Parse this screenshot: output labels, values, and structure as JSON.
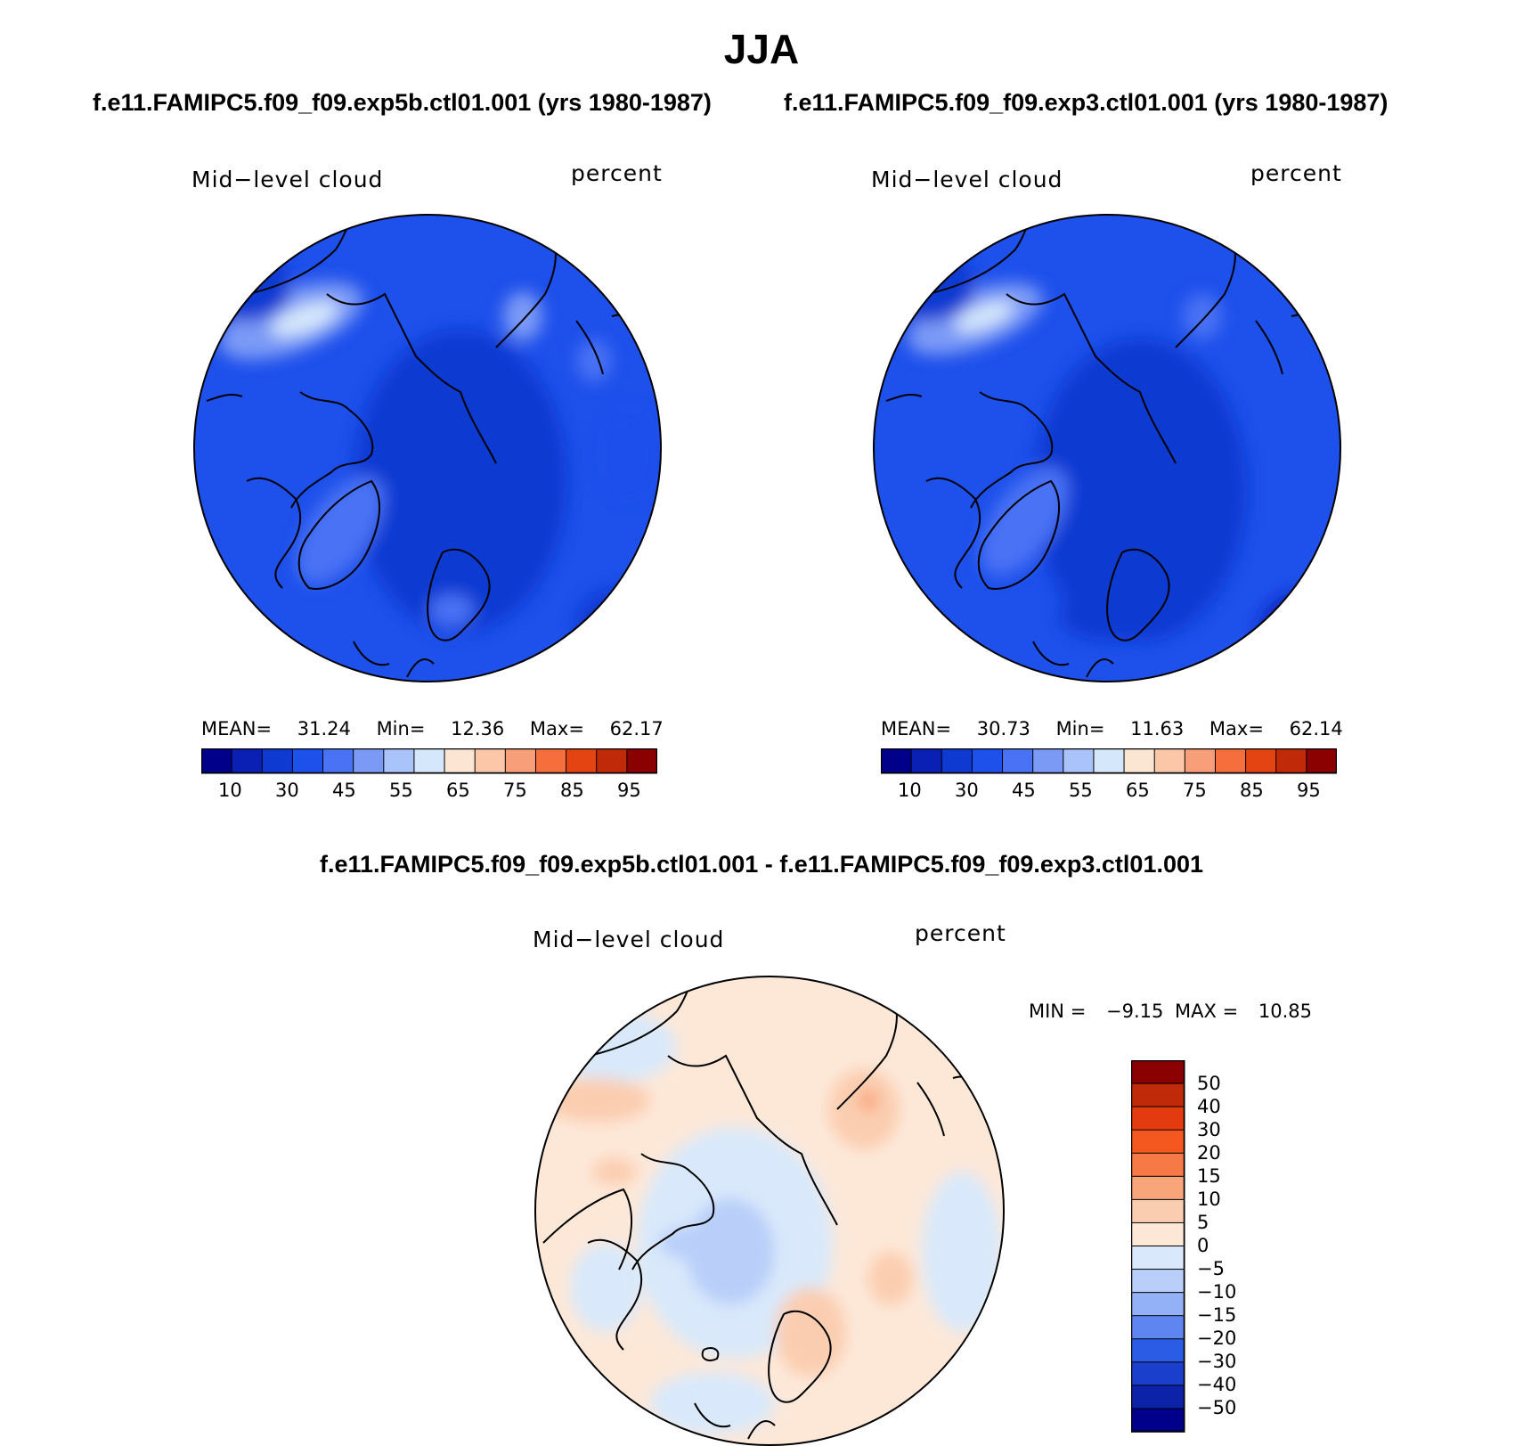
{
  "title": "JJA",
  "top_left": {
    "case_label": "f.e11.FAMIPC5.f09_f09.exp5b.ctl01.001 (yrs 1980-1987)",
    "variable": "Mid−level cloud",
    "units": "percent",
    "mean_label": "MEAN=",
    "mean": "31.24",
    "min_label": "Min=",
    "min": "12.36",
    "max_label": "Max=",
    "max": "62.17"
  },
  "top_right": {
    "case_label": "f.e11.FAMIPC5.f09_f09.exp3.ctl01.001 (yrs 1980-1987)",
    "variable": "Mid−level cloud",
    "units": "percent",
    "mean_label": "MEAN=",
    "mean": "30.73",
    "min_label": "Min=",
    "min": "11.63",
    "max_label": "Max=",
    "max": "62.14"
  },
  "abs_colorbar": {
    "colors": [
      "#00008b",
      "#0a1fb4",
      "#0f3ad2",
      "#1e50eb",
      "#4a72f4",
      "#7b9af6",
      "#a9c3fb",
      "#d5e8fb",
      "#fbe6d4",
      "#fbc7a8",
      "#f89e78",
      "#f56e3b",
      "#e44312",
      "#c02a08",
      "#8b0000"
    ],
    "tick_labels": [
      "10",
      "30",
      "45",
      "55",
      "65",
      "75",
      "85",
      "95"
    ]
  },
  "difference": {
    "title": "f.e11.FAMIPC5.f09_f09.exp5b.ctl01.001 - f.e11.FAMIPC5.f09_f09.exp3.ctl01.001",
    "variable": "Mid−level cloud",
    "units": "percent",
    "min_label": "MIN =",
    "min": "−9.15",
    "max_label": "MAX =",
    "max": "10.85",
    "colorbar_colors_top_to_bottom": [
      "#8b0000",
      "#c02a08",
      "#e43a10",
      "#f5581f",
      "#f67a45",
      "#f8a57a",
      "#fbcdb0",
      "#fde8d8",
      "#d9e9fb",
      "#b9cff9",
      "#92b1f6",
      "#5f86f0",
      "#2a5ce6",
      "#1a3fcc",
      "#0c22a8",
      "#00008b"
    ],
    "colorbar_labels": [
      "50",
      "40",
      "30",
      "20",
      "15",
      "10",
      "5",
      "0",
      "−5",
      "−10",
      "−15",
      "−20",
      "−30",
      "−40",
      "−50"
    ]
  }
}
